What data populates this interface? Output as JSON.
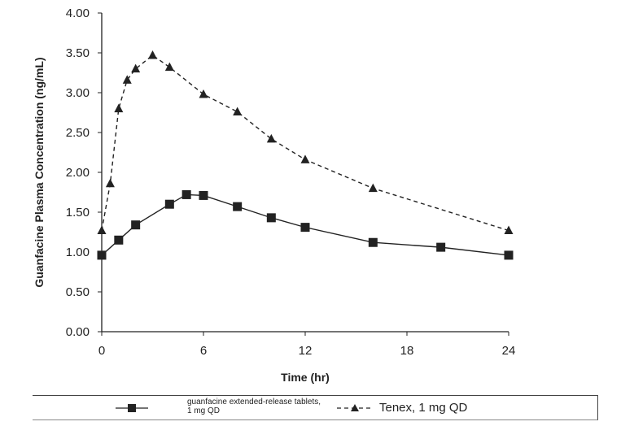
{
  "chart_data": {
    "type": "line",
    "title": "",
    "xlabel": "Time (hr)",
    "ylabel": "Guanfacine Plasma Concentration (ng/mL)",
    "xlim": [
      0,
      24
    ],
    "ylim": [
      0,
      4
    ],
    "xticks": [
      0,
      6,
      12,
      18,
      24
    ],
    "xtick_labels": [
      "0",
      "6",
      "12",
      "18",
      "24"
    ],
    "yticks": [
      0,
      0.5,
      1,
      1.5,
      2,
      2.5,
      3,
      3.5,
      4
    ],
    "ytick_labels": [
      "0.00",
      "0.50",
      "1.00",
      "1.50",
      "2.00",
      "2.50",
      "3.00",
      "3.50",
      "4.00"
    ],
    "grid": false,
    "legend_position": "bottom",
    "series": [
      {
        "name": "guanfacine extended-release tablets, 1 mg QD",
        "name_line1": "guanfacine extended-release tablets,",
        "name_line2": "1 mg QD",
        "marker": "square",
        "line": "solid",
        "x": [
          0,
          1,
          2,
          4,
          5,
          6,
          8,
          10,
          12,
          16,
          20,
          24
        ],
        "y": [
          0.96,
          1.15,
          1.34,
          1.6,
          1.72,
          1.71,
          1.57,
          1.43,
          1.31,
          1.12,
          1.06,
          0.96
        ]
      },
      {
        "name": "Tenex, 1 mg QD",
        "marker": "triangle",
        "line": "dashed",
        "x": [
          0,
          0.5,
          1,
          1.5,
          2,
          3,
          4,
          6,
          8,
          10,
          12,
          16,
          24
        ],
        "y": [
          1.27,
          1.86,
          2.8,
          3.16,
          3.3,
          3.47,
          3.32,
          2.98,
          2.76,
          2.42,
          2.16,
          1.8,
          1.27
        ]
      }
    ]
  }
}
